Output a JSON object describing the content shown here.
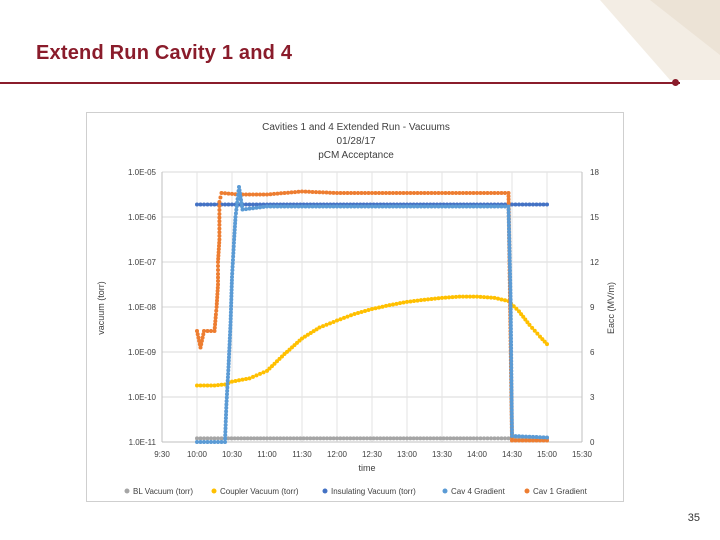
{
  "slide": {
    "title": "Extend Run Cavity 1 and 4",
    "page_number": "35"
  },
  "colors": {
    "accent": "#8a1c2b",
    "bl_vacuum": "#a5a5a5",
    "coupler_vacuum": "#ffc000",
    "insulating_vacuum": "#4472c4",
    "cav4_gradient": "#5b9bd5",
    "cav1_gradient": "#ed7d31"
  },
  "chart_data": {
    "type": "scatter",
    "title": [
      "Cavities 1 and 4 Extended Run - Vacuums",
      "01/28/17",
      "pCM Acceptance"
    ],
    "xlabel": "time",
    "ylabel": "vacuum (torr)",
    "y2label": "Eacc (MV/m)",
    "x_ticks": [
      "9:30",
      "10:00",
      "10:30",
      "11:00",
      "11:30",
      "12:00",
      "12:30",
      "13:00",
      "13:30",
      "14:00",
      "14:30",
      "15:00",
      "15:30"
    ],
    "x_range_hours": [
      9.5,
      15.5
    ],
    "y_ticks": [
      "1.0E-11",
      "1.0E-10",
      "1.0E-09",
      "1.0E-08",
      "1.0E-07",
      "1.0E-06",
      "1.0E-05"
    ],
    "y_log_range": [
      -11,
      -5
    ],
    "y2_ticks": [
      "0",
      "3",
      "6",
      "9",
      "12",
      "15",
      "18"
    ],
    "y2_range": [
      0,
      18
    ],
    "legend": [
      "BL Vacuum (torr)",
      "Coupler Vacuum (torr)",
      "Insulating Vacuum (torr)",
      "Cav 4 Gradient",
      "Cav 1 Gradient"
    ],
    "legend_position": "bottom",
    "series": [
      {
        "name": "BL Vacuum (torr)",
        "axis": "left",
        "color": "#a5a5a5",
        "points": [
          [
            10.0,
            1.2e-11
          ],
          [
            10.4,
            1.2e-11
          ],
          [
            11.0,
            1.2e-11
          ],
          [
            12.0,
            1.2e-11
          ],
          [
            13.0,
            1.2e-11
          ],
          [
            14.0,
            1.2e-11
          ],
          [
            14.5,
            1.2e-11
          ],
          [
            15.0,
            1.2e-11
          ]
        ]
      },
      {
        "name": "Coupler Vacuum (torr)",
        "axis": "left",
        "color": "#ffc000",
        "points": [
          [
            10.0,
            1.8e-10
          ],
          [
            10.25,
            1.8e-10
          ],
          [
            10.4,
            1.9e-10
          ],
          [
            10.5,
            2.2e-10
          ],
          [
            10.75,
            2.6e-10
          ],
          [
            11.0,
            3.8e-10
          ],
          [
            11.25,
            9e-10
          ],
          [
            11.5,
            2e-09
          ],
          [
            11.75,
            3.5e-09
          ],
          [
            12.0,
            5e-09
          ],
          [
            12.25,
            7e-09
          ],
          [
            12.5,
            9e-09
          ],
          [
            12.75,
            1.1e-08
          ],
          [
            13.0,
            1.3e-08
          ],
          [
            13.25,
            1.45e-08
          ],
          [
            13.5,
            1.6e-08
          ],
          [
            13.75,
            1.7e-08
          ],
          [
            14.0,
            1.7e-08
          ],
          [
            14.25,
            1.6e-08
          ],
          [
            14.45,
            1.35e-08
          ],
          [
            14.6,
            8e-09
          ],
          [
            14.75,
            4e-09
          ],
          [
            14.9,
            2.2e-09
          ],
          [
            15.0,
            1.5e-09
          ]
        ]
      },
      {
        "name": "Insulating Vacuum (torr)",
        "axis": "left",
        "color": "#4472c4",
        "points": [
          [
            10.0,
            1.9e-06
          ],
          [
            10.4,
            1.9e-06
          ],
          [
            10.6,
            1.9e-06
          ],
          [
            11.0,
            1.9e-06
          ],
          [
            12.0,
            1.9e-06
          ],
          [
            13.0,
            1.9e-06
          ],
          [
            14.0,
            1.9e-06
          ],
          [
            14.5,
            1.9e-06
          ],
          [
            15.0,
            1.9e-06
          ]
        ]
      },
      {
        "name": "Cav 4 Gradient",
        "axis": "right",
        "color": "#5b9bd5",
        "points": [
          [
            10.0,
            0.0
          ],
          [
            10.4,
            0.0
          ],
          [
            10.42,
            2.5
          ],
          [
            10.45,
            5.0
          ],
          [
            10.48,
            8.0
          ],
          [
            10.5,
            11.0
          ],
          [
            10.53,
            13.5
          ],
          [
            10.55,
            15.0
          ],
          [
            10.58,
            16.2
          ],
          [
            10.6,
            17.0
          ],
          [
            10.65,
            15.5
          ],
          [
            11.0,
            15.7
          ],
          [
            11.5,
            15.7
          ],
          [
            12.0,
            15.7
          ],
          [
            12.5,
            15.7
          ],
          [
            13.0,
            15.7
          ],
          [
            13.5,
            15.7
          ],
          [
            14.0,
            15.7
          ],
          [
            14.45,
            15.7
          ],
          [
            14.48,
            9.5
          ],
          [
            14.5,
            0.4
          ],
          [
            15.0,
            0.3
          ]
        ]
      },
      {
        "name": "Cav 1 Gradient",
        "axis": "right",
        "color": "#ed7d31",
        "points": [
          [
            10.0,
            7.4
          ],
          [
            10.05,
            6.3
          ],
          [
            10.1,
            7.4
          ],
          [
            10.25,
            7.4
          ],
          [
            10.27,
            8.5
          ],
          [
            10.28,
            9.0
          ],
          [
            10.3,
            10.5
          ],
          [
            10.3,
            11.2
          ],
          [
            10.3,
            12.0
          ],
          [
            10.32,
            13.5
          ],
          [
            10.32,
            15.2
          ],
          [
            10.32,
            16.0
          ],
          [
            10.35,
            16.6
          ],
          [
            10.6,
            16.5
          ],
          [
            11.0,
            16.5
          ],
          [
            11.5,
            16.7
          ],
          [
            12.0,
            16.6
          ],
          [
            12.5,
            16.6
          ],
          [
            13.0,
            16.6
          ],
          [
            13.5,
            16.6
          ],
          [
            14.0,
            16.6
          ],
          [
            14.45,
            16.6
          ],
          [
            14.5,
            0.1
          ],
          [
            15.0,
            0.1
          ]
        ]
      }
    ]
  }
}
